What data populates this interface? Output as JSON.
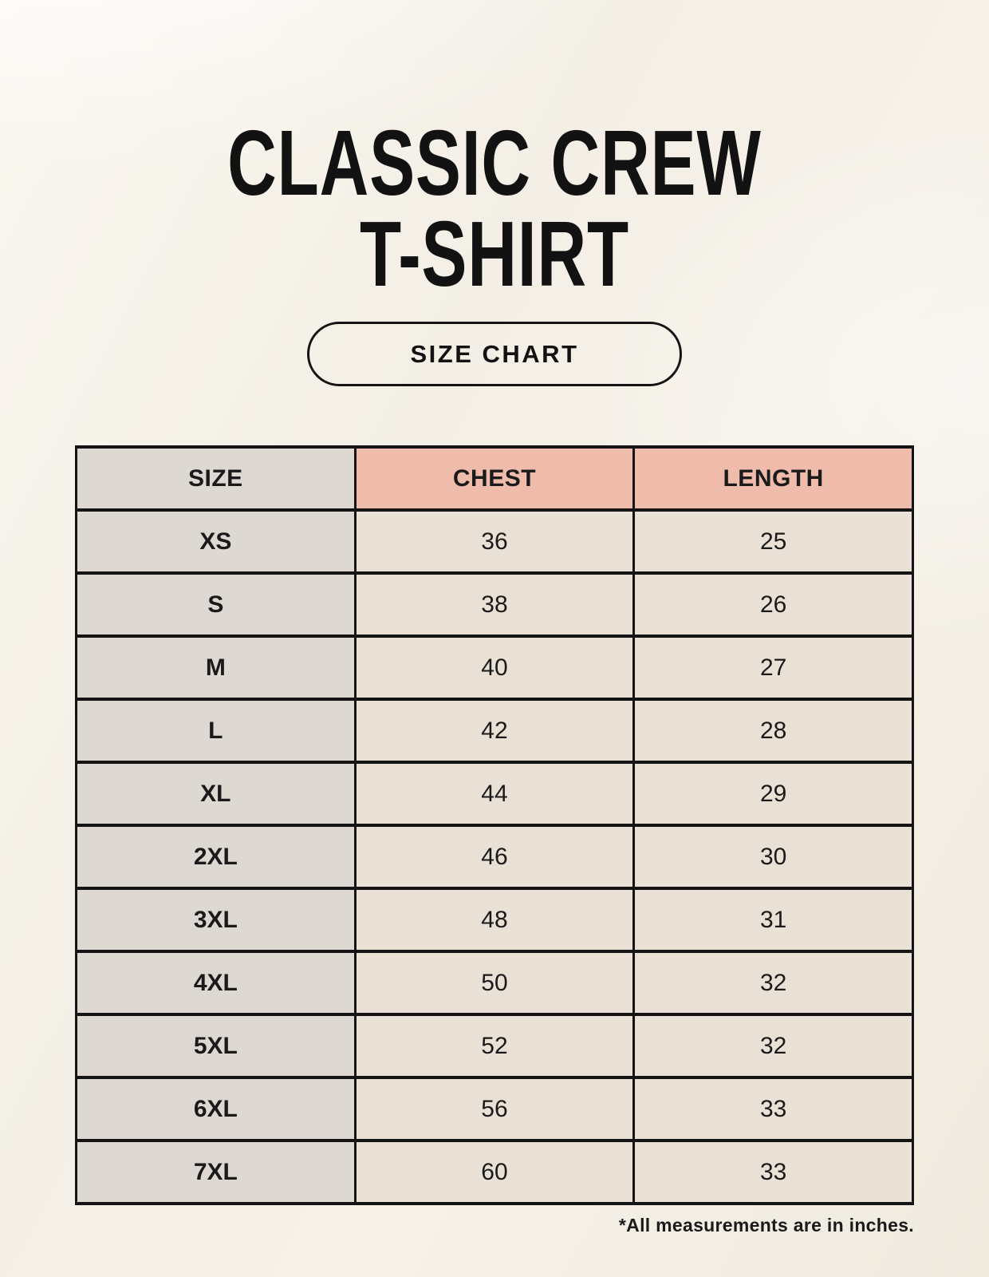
{
  "page": {
    "title_line1": "CLASSIC CREW",
    "title_line2": "T-SHIRT",
    "badge_label": "SIZE CHART",
    "footnote": "*All measurements are in inches."
  },
  "colors": {
    "background": "#f4f0e7",
    "header_accent_pink": "#efbcac",
    "size_column_gray": "#ded8d2",
    "data_cell_cream": "#e9e1d6",
    "border_black": "#141414",
    "text": "#1a1a1a"
  },
  "chart_data": {
    "type": "table",
    "title": "Classic Crew T-Shirt Size Chart",
    "units": "inches",
    "columns": [
      "SIZE",
      "CHEST",
      "LENGTH"
    ],
    "rows": [
      {
        "size": "XS",
        "chest": 36,
        "length": 25
      },
      {
        "size": "S",
        "chest": 38,
        "length": 26
      },
      {
        "size": "M",
        "chest": 40,
        "length": 27
      },
      {
        "size": "L",
        "chest": 42,
        "length": 28
      },
      {
        "size": "XL",
        "chest": 44,
        "length": 29
      },
      {
        "size": "2XL",
        "chest": 46,
        "length": 30
      },
      {
        "size": "3XL",
        "chest": 48,
        "length": 31
      },
      {
        "size": "4XL",
        "chest": 50,
        "length": 32
      },
      {
        "size": "5XL",
        "chest": 52,
        "length": 32
      },
      {
        "size": "6XL",
        "chest": 56,
        "length": 33
      },
      {
        "size": "7XL",
        "chest": 60,
        "length": 33
      }
    ]
  }
}
